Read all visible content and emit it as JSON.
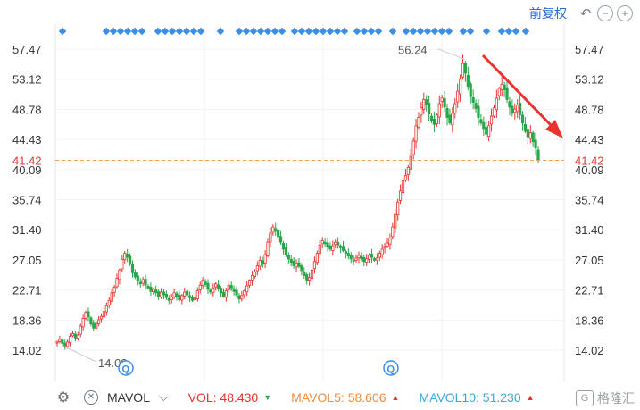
{
  "toolbar": {
    "adjust_label": "前复权",
    "undo_icon": "undo-icon",
    "zoom_out_icon": "zoom-out-icon",
    "zoom_in_icon": "zoom-in-icon"
  },
  "chart_data": {
    "type": "candlestick",
    "y_ticks": [
      "57.47",
      "53.12",
      "48.78",
      "44.43",
      "40.09",
      "35.74",
      "31.40",
      "27.05",
      "22.71",
      "18.36",
      "14.02"
    ],
    "ylim": [
      14.02,
      57.47
    ],
    "current_price": "41.42",
    "high_label": "56.24",
    "low_label": "14.02",
    "colors": {
      "up": "#e8332e",
      "down": "#2aa64a",
      "price_line": "#f0a35a",
      "marker": "#3b8fe8",
      "arrow": "#e8332e",
      "axis_text": "#333333"
    },
    "closes": [
      15.2,
      15.6,
      15.0,
      14.5,
      15.2,
      16.0,
      16.4,
      15.8,
      16.2,
      17.5,
      18.6,
      19.5,
      18.8,
      17.8,
      17.2,
      17.9,
      18.4,
      18.9,
      19.6,
      20.4,
      21.2,
      22.3,
      23.1,
      24.4,
      25.6,
      27.1,
      28.0,
      27.4,
      26.5,
      25.2,
      24.6,
      24.0,
      23.6,
      24.2,
      23.4,
      23.0,
      22.5,
      22.8,
      22.3,
      21.8,
      22.4,
      22.0,
      21.6,
      21.2,
      21.7,
      22.3,
      21.8,
      21.3,
      21.9,
      22.4,
      22.0,
      21.6,
      21.2,
      21.6,
      22.6,
      23.4,
      24.0,
      23.5,
      22.8,
      22.4,
      23.0,
      23.6,
      22.9,
      22.3,
      21.8,
      22.6,
      23.4,
      23.0,
      22.5,
      22.0,
      21.4,
      21.9,
      22.6,
      23.3,
      24.0,
      24.8,
      25.3,
      26.2,
      27.0,
      26.4,
      27.8,
      29.6,
      30.9,
      31.8,
      31.2,
      30.4,
      29.6,
      28.6,
      27.8,
      27.2,
      26.7,
      26.2,
      26.6,
      26.1,
      25.5,
      24.8,
      24.0,
      24.5,
      25.6,
      26.8,
      28.0,
      29.2,
      29.8,
      29.4,
      29.0,
      28.6,
      29.1,
      29.6,
      29.2,
      28.8,
      28.4,
      28.0,
      27.6,
      27.2,
      26.9,
      27.3,
      27.7,
      27.2,
      26.8,
      27.2,
      27.7,
      27.4,
      27.0,
      27.3,
      28.0,
      28.6,
      29.0,
      29.5,
      30.2,
      31.8,
      33.6,
      35.4,
      37.0,
      38.5,
      39.2,
      40.4,
      42.0,
      44.2,
      46.4,
      47.6,
      49.0,
      50.2,
      49.4,
      48.1,
      47.2,
      46.6,
      48.0,
      49.6,
      50.4,
      49.1,
      47.6,
      46.8,
      48.2,
      49.6,
      51.4,
      53.2,
      55.4,
      54.0,
      52.1,
      50.6,
      49.8,
      48.9,
      47.6,
      46.8,
      46.0,
      45.2,
      46.4,
      47.8,
      49.0,
      50.4,
      51.8,
      52.4,
      51.6,
      50.2,
      49.1,
      48.2,
      48.8,
      49.4,
      48.0,
      46.8,
      45.6,
      44.8,
      45.4,
      44.1,
      43.2,
      41.42
    ]
  },
  "mavol_bar": {
    "selector_label": "MAVOL",
    "vol_label": "VOL: 48.430",
    "mavol5_label": "MAVOL5: 58.606",
    "mavol10_label": "MAVOL10: 51.230",
    "colors": {
      "vol": "#e8332e",
      "mavol5": "#f08c3c",
      "mavol10": "#3aa7d9"
    }
  },
  "watermark": {
    "text": "格隆汇"
  }
}
